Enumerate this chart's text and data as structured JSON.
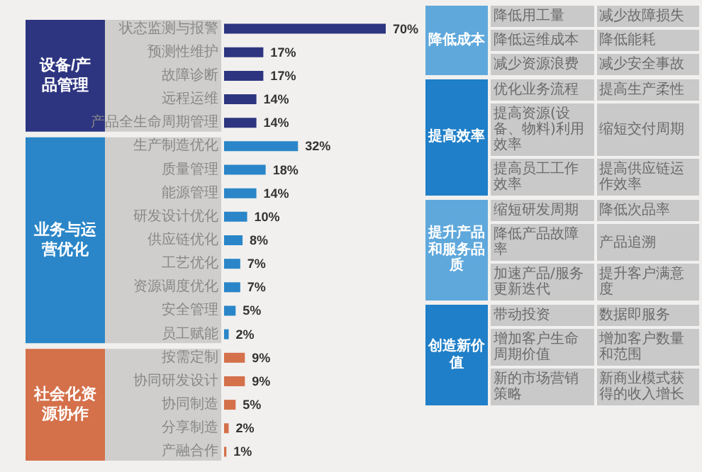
{
  "chart_data": [
    {
      "type": "bar",
      "orientation": "horizontal",
      "categories": [
        "状态监测与报警",
        "预测性维护",
        "故障诊断",
        "远程运维",
        "产品全生命周期管理",
        "生产制造优化",
        "质量管理",
        "能源管理",
        "研发设计优化",
        "供应链优化",
        "工艺优化",
        "资源调度优化",
        "安全管理",
        "员工赋能",
        "按需定制",
        "协同研发设计",
        "协同制造",
        "分享制造",
        "产融合作"
      ],
      "values": [
        70,
        17,
        17,
        14,
        14,
        32,
        18,
        14,
        10,
        8,
        7,
        7,
        5,
        2,
        9,
        9,
        5,
        2,
        1
      ],
      "value_labels": [
        "70%",
        "17%",
        "17%",
        "14%",
        "14%",
        "32%",
        "18%",
        "14%",
        "10%",
        "8%",
        "7%",
        "7%",
        "5%",
        "2%",
        "9%",
        "9%",
        "5%",
        "2%",
        "1%"
      ],
      "colors": [
        "#2e3580",
        "#2e3580",
        "#2e3580",
        "#2e3580",
        "#2e3580",
        "#2a86c8",
        "#2a86c8",
        "#2a86c8",
        "#2a86c8",
        "#2a86c8",
        "#2a86c8",
        "#2a86c8",
        "#2a86c8",
        "#2a86c8",
        "#d4704a",
        "#d4704a",
        "#d4704a",
        "#d4704a",
        "#d4704a"
      ],
      "annotations": [
        "设备/产品管理",
        "业务与运营优化",
        "社会化资源协作"
      ]
    },
    {
      "type": "other",
      "annotations": [
        "降低成本",
        "降低用工量",
        "减少故障损失",
        "降低运维成本",
        "降低能耗",
        "减少资源浪费",
        "减少安全事故",
        "提高效率",
        "优化业务流程",
        "提高生产柔性",
        "提高资源(设备、物料)利用效率",
        "缩短交付周期",
        "提高员工工作效率",
        "提高供应链运作效率",
        "提升产品和服务品质",
        "缩短研发周期",
        "降低次品率",
        "降低产品故障率",
        "产品追溯",
        "加速产品/服务更新迭代",
        "提升客户满意度",
        "创造新价值",
        "带动投资",
        "数据即服务",
        "增加客户生命周期价值",
        "增加客户数量和范围",
        "新的市场营销策略",
        "新商业模式获得的收入增长"
      ]
    }
  ]
}
